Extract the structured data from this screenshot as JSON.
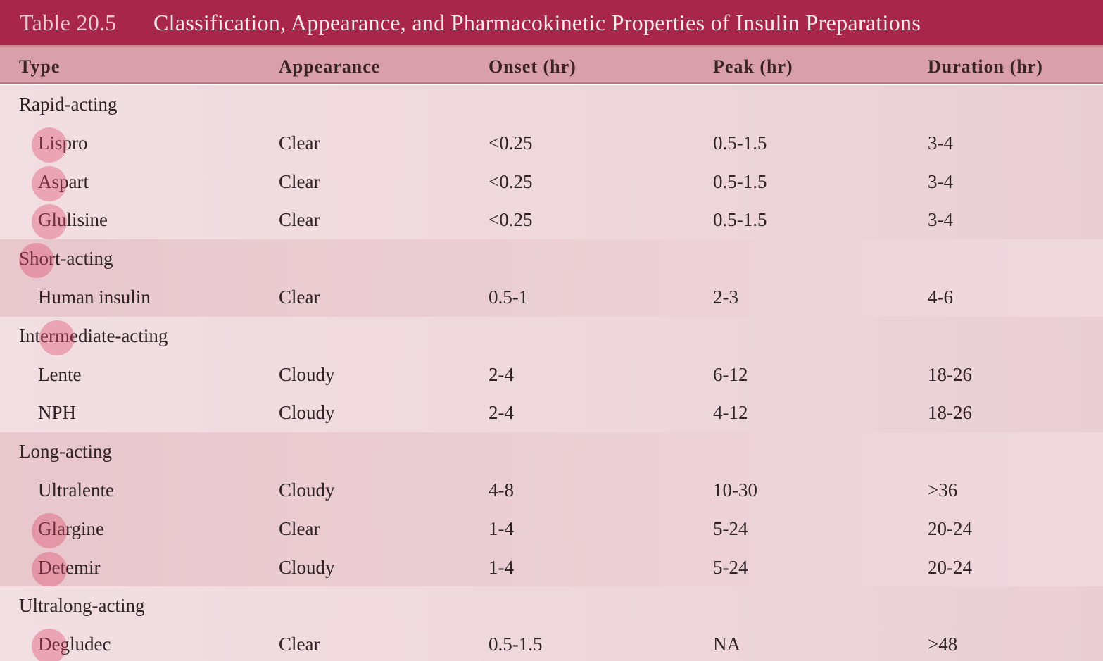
{
  "title": {
    "number": "Table 20.5",
    "text": "Classification, Appearance, and Pharmacokinetic Properties of Insulin Preparations"
  },
  "header": {
    "type": "Type",
    "appearance": "Appearance",
    "onset": "Onset (hr)",
    "peak": "Peak (hr)",
    "duration": "Duration (hr)"
  },
  "groups": [
    {
      "label": "Rapid-acting",
      "rows": [
        {
          "type": "Lispro",
          "appearance": "Clear",
          "onset": "<0.25",
          "peak": "0.5-1.5",
          "duration": "3-4",
          "marked": true
        },
        {
          "type": "Aspart",
          "appearance": "Clear",
          "onset": "<0.25",
          "peak": "0.5-1.5",
          "duration": "3-4",
          "marked": true
        },
        {
          "type": "Glulisine",
          "appearance": "Clear",
          "onset": "<0.25",
          "peak": "0.5-1.5",
          "duration": "3-4",
          "marked": true
        }
      ]
    },
    {
      "label": "Short-acting",
      "marked": true,
      "rows": [
        {
          "type": "Human insulin",
          "appearance": "Clear",
          "onset": "0.5-1",
          "peak": "2-3",
          "duration": "4-6",
          "marked": false
        }
      ]
    },
    {
      "label": "Intermediate-acting",
      "marked": true,
      "rows": [
        {
          "type": "Lente",
          "appearance": "Cloudy",
          "onset": "2-4",
          "peak": "6-12",
          "duration": "18-26",
          "marked": false
        },
        {
          "type": "NPH",
          "appearance": "Cloudy",
          "onset": "2-4",
          "peak": "4-12",
          "duration": "18-26",
          "marked": false
        }
      ]
    },
    {
      "label": "Long-acting",
      "rows": [
        {
          "type": "Ultralente",
          "appearance": "Cloudy",
          "onset": "4-8",
          "peak": "10-30",
          "duration": ">36",
          "marked": false
        },
        {
          "type": "Glargine",
          "appearance": "Clear",
          "onset": "1-4",
          "peak": "5-24",
          "duration": "20-24",
          "marked": true
        },
        {
          "type": "Detemir",
          "appearance": "Cloudy",
          "onset": "1-4",
          "peak": "5-24",
          "duration": "20-24",
          "marked": true
        }
      ]
    },
    {
      "label": "Ultralong-acting",
      "rows": [
        {
          "type": "Degludec",
          "appearance": "Clear",
          "onset": "0.5-1.5",
          "peak": "NA",
          "duration": ">48",
          "marked": true
        }
      ]
    }
  ],
  "colors": {
    "title_bar": "#a8264a",
    "header_row": "#d9a0ab",
    "marker": "#de4669"
  }
}
